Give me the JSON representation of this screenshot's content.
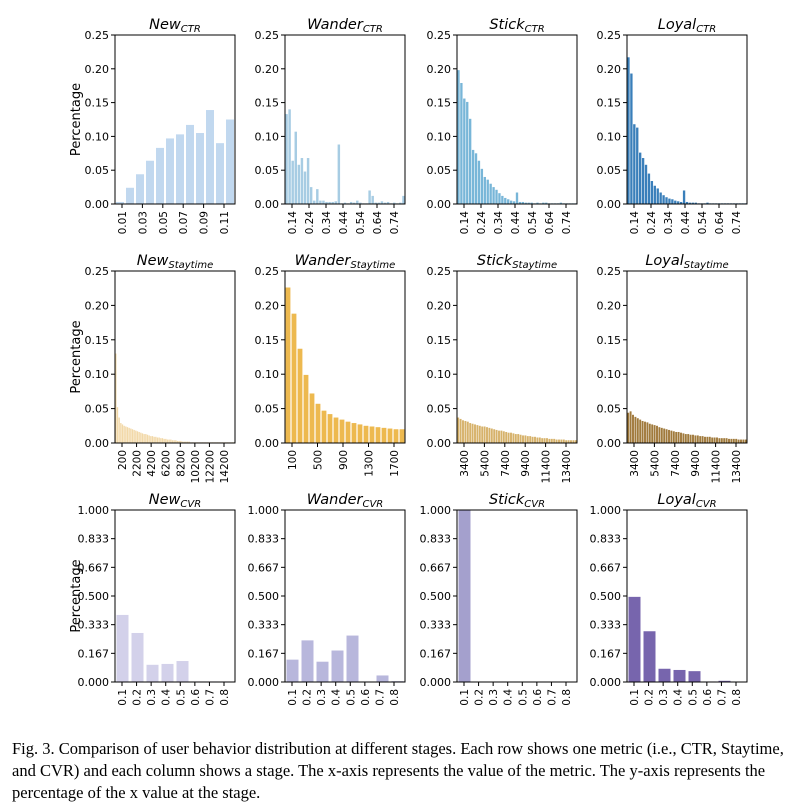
{
  "caption": "Fig. 3.  Comparison of user behavior distribution at different stages. Each row shows one metric (i.e., CTR, Staytime, and CVR) and each column shows a stage. The x-axis represents the value of the metric. The y-axis represents the percentage of the x value at the stage.",
  "y_axis_label": "Percentage",
  "chart_data": [
    {
      "type": "bar",
      "title": "New",
      "subscript": "CTR",
      "color": "#c1d8ef",
      "ylim": [
        0,
        0.25
      ],
      "yticks": [
        "0.00",
        "0.05",
        "0.10",
        "0.15",
        "0.20",
        "0.25"
      ],
      "xticks": [
        "0.01",
        "0.03",
        "0.05",
        "0.07",
        "0.09",
        "0.11"
      ],
      "values": [
        0.003,
        0.024,
        0.044,
        0.064,
        0.083,
        0.097,
        0.103,
        0.117,
        0.105,
        0.139,
        0.09,
        0.125
      ]
    },
    {
      "type": "bar",
      "title": "Wander",
      "subscript": "CTR",
      "color": "#a7cce3",
      "ylim": [
        0,
        0.25
      ],
      "yticks": [
        "0.00",
        "0.05",
        "0.10",
        "0.15",
        "0.20",
        "0.25"
      ],
      "xticks": [
        "0.14",
        "0.24",
        "0.34",
        "0.44",
        "0.54",
        "0.64",
        "0.74"
      ],
      "values": [
        0.133,
        0.14,
        0.064,
        0.107,
        0.058,
        0.068,
        0.048,
        0.068,
        0.025,
        0.005,
        0.022,
        0.005,
        0.005,
        0.003,
        0.003,
        0.003,
        0.004,
        0.088,
        0.001,
        0.002,
        0.001,
        0.003,
        0.002,
        0.005,
        0.002,
        0.001,
        0.001,
        0.02,
        0.012,
        0.002,
        0.002,
        0.004,
        0.002,
        0.003,
        0.001,
        0.002,
        0.001,
        0.002,
        0.012
      ]
    },
    {
      "type": "bar",
      "title": "Stick",
      "subscript": "CTR",
      "color": "#78b6d8",
      "ylim": [
        0,
        0.25
      ],
      "yticks": [
        "0.00",
        "0.05",
        "0.10",
        "0.15",
        "0.20",
        "0.25"
      ],
      "xticks": [
        "0.14",
        "0.24",
        "0.34",
        "0.44",
        "0.54",
        "0.64",
        "0.74"
      ],
      "values": [
        0.198,
        0.179,
        0.156,
        0.151,
        0.126,
        0.08,
        0.075,
        0.064,
        0.052,
        0.04,
        0.036,
        0.03,
        0.025,
        0.021,
        0.016,
        0.012,
        0.009,
        0.007,
        0.005,
        0.004,
        0.017,
        0.003,
        0.003,
        0.002,
        0.002,
        0.002,
        0.001,
        0.002,
        0.001,
        0.002,
        0.002,
        0.001,
        0.001,
        0.001,
        0.001,
        0.002,
        0.001,
        0.001,
        0.001,
        0.001,
        0.001
      ]
    },
    {
      "type": "bar",
      "title": "Loyal",
      "subscript": "CTR",
      "color": "#3a7fba",
      "ylim": [
        0,
        0.25
      ],
      "yticks": [
        "0.00",
        "0.05",
        "0.10",
        "0.15",
        "0.20",
        "0.25"
      ],
      "xticks": [
        "0.14",
        "0.24",
        "0.34",
        "0.44",
        "0.54",
        "0.64",
        "0.74"
      ],
      "values": [
        0.217,
        0.193,
        0.118,
        0.113,
        0.076,
        0.068,
        0.058,
        0.045,
        0.034,
        0.027,
        0.023,
        0.017,
        0.013,
        0.01,
        0.008,
        0.007,
        0.005,
        0.004,
        0.003,
        0.02,
        0.003,
        0.002,
        0.002,
        0.002,
        0.001,
        0.001,
        0.001,
        0.002,
        0.001,
        0.001,
        0.001,
        0.001,
        0.001,
        0.001,
        0.001,
        0.001,
        0.001,
        0.001,
        0.001,
        0.001,
        0.001
      ]
    },
    {
      "type": "bar",
      "title": "New",
      "subscript": "Staytime",
      "color": "#f2d8a7",
      "ylim": [
        0,
        0.25
      ],
      "yticks": [
        "0.00",
        "0.05",
        "0.10",
        "0.15",
        "0.20",
        "0.25"
      ],
      "xticks": [
        "200",
        "2200",
        "4200",
        "6200",
        "8200",
        "10200",
        "12200",
        "14200"
      ],
      "values": [
        0.13,
        0.052,
        0.037,
        0.029,
        0.027,
        0.025,
        0.024,
        0.023,
        0.022,
        0.021,
        0.02,
        0.019,
        0.018,
        0.017,
        0.016,
        0.015,
        0.014,
        0.013,
        0.013,
        0.012,
        0.011,
        0.01,
        0.01,
        0.009,
        0.009,
        0.008,
        0.008,
        0.007,
        0.007,
        0.006,
        0.006,
        0.005,
        0.005,
        0.005,
        0.004,
        0.004,
        0.004,
        0.003,
        0.003,
        0.003,
        0.002,
        0.002,
        0.002,
        0.002,
        0.002,
        0.001,
        0.001,
        0.001,
        0.001,
        0.001,
        0.001,
        0.001,
        0.001,
        0.001,
        0.001,
        0.001,
        0.001,
        0.001,
        0.001,
        0.001,
        0.001,
        0.001,
        0.001,
        0.001,
        0.001,
        0.001,
        0.001,
        0.001,
        0.001,
        0.001,
        0.001,
        0.001
      ]
    },
    {
      "type": "bar",
      "title": "Wander",
      "subscript": "Staytime",
      "color": "#edb94f",
      "ylim": [
        0,
        0.25
      ],
      "yticks": [
        "0.00",
        "0.05",
        "0.10",
        "0.15",
        "0.20",
        "0.25"
      ],
      "xticks": [
        "100",
        "500",
        "900",
        "1300",
        "1700"
      ],
      "values": [
        0.226,
        0.188,
        0.137,
        0.099,
        0.072,
        0.057,
        0.047,
        0.042,
        0.037,
        0.034,
        0.031,
        0.029,
        0.027,
        0.025,
        0.024,
        0.023,
        0.022,
        0.021,
        0.02,
        0.02
      ]
    },
    {
      "type": "bar",
      "title": "Stick",
      "subscript": "Staytime",
      "color": "#d6b26a",
      "ylim": [
        0,
        0.25
      ],
      "yticks": [
        "0.00",
        "0.05",
        "0.10",
        "0.15",
        "0.20",
        "0.25"
      ],
      "xticks": [
        "3400",
        "5400",
        "7400",
        "9400",
        "11400",
        "13400"
      ],
      "values": [
        0.037,
        0.035,
        0.033,
        0.032,
        0.031,
        0.029,
        0.028,
        0.027,
        0.026,
        0.025,
        0.024,
        0.024,
        0.023,
        0.022,
        0.021,
        0.02,
        0.019,
        0.018,
        0.018,
        0.017,
        0.016,
        0.015,
        0.015,
        0.014,
        0.013,
        0.013,
        0.012,
        0.011,
        0.011,
        0.01,
        0.01,
        0.009,
        0.009,
        0.008,
        0.008,
        0.007,
        0.007,
        0.007,
        0.006,
        0.006,
        0.006,
        0.005,
        0.005,
        0.005,
        0.005,
        0.004,
        0.004,
        0.004,
        0.004,
        0.004
      ]
    },
    {
      "type": "bar",
      "title": "Loyal",
      "subscript": "Staytime",
      "color": "#a07a3c",
      "ylim": [
        0,
        0.25
      ],
      "yticks": [
        "0.00",
        "0.05",
        "0.10",
        "0.15",
        "0.20",
        "0.25"
      ],
      "xticks": [
        "3400",
        "5400",
        "7400",
        "9400",
        "11400",
        "13400"
      ],
      "values": [
        0.044,
        0.046,
        0.041,
        0.038,
        0.036,
        0.034,
        0.032,
        0.031,
        0.03,
        0.028,
        0.027,
        0.026,
        0.025,
        0.023,
        0.022,
        0.021,
        0.02,
        0.019,
        0.018,
        0.017,
        0.016,
        0.016,
        0.015,
        0.014,
        0.013,
        0.013,
        0.012,
        0.012,
        0.011,
        0.011,
        0.01,
        0.01,
        0.009,
        0.009,
        0.009,
        0.008,
        0.008,
        0.008,
        0.007,
        0.007,
        0.007,
        0.007,
        0.006,
        0.006,
        0.006,
        0.006,
        0.005,
        0.005,
        0.005,
        0.005
      ]
    },
    {
      "type": "bar",
      "title": "New",
      "subscript": "CVR",
      "color": "#d3d1ea",
      "ylim": [
        0,
        1
      ],
      "yticks": [
        "0.000",
        "0.167",
        "0.333",
        "0.500",
        "0.667",
        "0.833",
        "1.000"
      ],
      "xticks": [
        "0.1",
        "0.2",
        "0.3",
        "0.4",
        "0.5",
        "0.6",
        "0.7",
        "0.8"
      ],
      "values": [
        0.39,
        0.285,
        0.1,
        0.105,
        0.122,
        0.003,
        0.003,
        0.003
      ]
    },
    {
      "type": "bar",
      "title": "Wander",
      "subscript": "CVR",
      "color": "#b8b7dc",
      "ylim": [
        0,
        1
      ],
      "yticks": [
        "0.000",
        "0.167",
        "0.333",
        "0.500",
        "0.667",
        "0.833",
        "1.000"
      ],
      "xticks": [
        "0.1",
        "0.2",
        "0.3",
        "0.4",
        "0.5",
        "0.6",
        "0.7",
        "0.8"
      ],
      "values": [
        0.13,
        0.242,
        0.118,
        0.183,
        0.27,
        0.003,
        0.038,
        0.005
      ]
    },
    {
      "type": "bar",
      "title": "Stick",
      "subscript": "CVR",
      "color": "#a4a0cd",
      "ylim": [
        0,
        1
      ],
      "yticks": [
        "0.000",
        "0.167",
        "0.333",
        "0.500",
        "0.667",
        "0.833",
        "1.000"
      ],
      "xticks": [
        "0.1",
        "0.2",
        "0.3",
        "0.4",
        "0.5",
        "0.6",
        "0.7",
        "0.8"
      ],
      "values": [
        1.0,
        0.002,
        0.001,
        0.001,
        0.001,
        0.001,
        0.001,
        0.001
      ]
    },
    {
      "type": "bar",
      "title": "Loyal",
      "subscript": "CVR",
      "color": "#7765ad",
      "ylim": [
        0,
        1
      ],
      "yticks": [
        "0.000",
        "0.167",
        "0.333",
        "0.500",
        "0.667",
        "0.833",
        "1.000"
      ],
      "xticks": [
        "0.1",
        "0.2",
        "0.3",
        "0.4",
        "0.5",
        "0.6",
        "0.7",
        "0.8"
      ],
      "values": [
        0.495,
        0.295,
        0.077,
        0.07,
        0.063,
        0.003,
        0.007,
        0.002
      ]
    }
  ]
}
